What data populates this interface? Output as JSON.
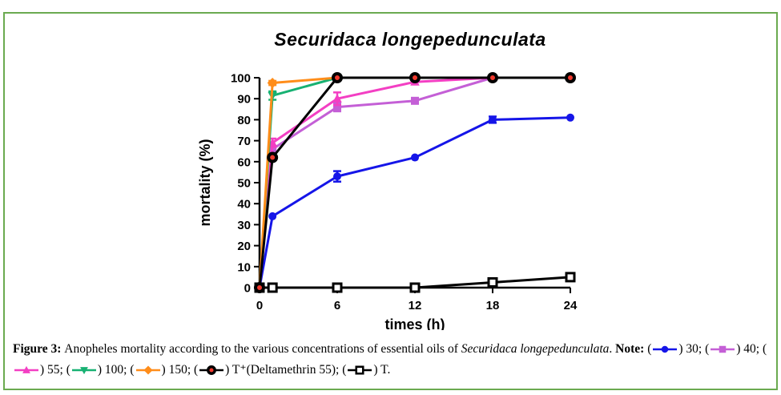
{
  "figure": {
    "border_color": "#6baa50"
  },
  "chart_data": {
    "type": "line",
    "title": "Securidaca longepedunculata",
    "xlabel": "times (h)",
    "ylabel": "mortality (%)",
    "x": [
      0,
      1,
      6,
      12,
      18,
      24
    ],
    "xticks": [
      0,
      6,
      12,
      18,
      24
    ],
    "xlim": [
      0,
      24
    ],
    "ylim": [
      0,
      100
    ],
    "ytick_step": 10,
    "grid": false,
    "legend_position": "caption",
    "series": [
      {
        "name": "30",
        "color": "#1515e8",
        "marker": "circle",
        "values": [
          0,
          34,
          53,
          62,
          80,
          81
        ],
        "errors": [
          0,
          0,
          2.5,
          0,
          1.5,
          0
        ]
      },
      {
        "name": "40",
        "color": "#c45fd6",
        "marker": "square",
        "values": [
          0,
          66,
          86,
          89,
          100,
          100
        ],
        "errors": [
          0,
          0,
          2,
          0,
          0,
          0
        ]
      },
      {
        "name": "55",
        "color": "#f33fc3",
        "marker": "triangle-up",
        "values": [
          0,
          69,
          90,
          98,
          100,
          100
        ],
        "errors": [
          0,
          2,
          3,
          0,
          0,
          0
        ]
      },
      {
        "name": "100",
        "color": "#17b172",
        "marker": "triangle-down",
        "values": [
          0,
          91.5,
          100,
          100,
          100,
          100
        ],
        "errors": [
          0,
          2,
          0,
          0,
          0,
          0
        ]
      },
      {
        "name": "150",
        "color": "#ff8d1a",
        "marker": "diamond",
        "values": [
          0,
          97.5,
          100,
          100,
          100,
          100
        ],
        "errors": [
          0,
          1,
          0,
          0,
          0,
          0
        ]
      },
      {
        "name": "T",
        "color": "#000000",
        "marker": "open-square",
        "values": [
          0,
          0,
          0,
          0,
          2.5,
          5
        ],
        "errors": [
          0,
          0,
          0,
          0,
          0,
          1
        ]
      },
      {
        "name": "T+",
        "color": "#000000",
        "marker": "ring-red",
        "marker_fill": "#f23a2e",
        "values": [
          0,
          62,
          100,
          100,
          100,
          100
        ],
        "errors": [
          0,
          0,
          0,
          0,
          0,
          0
        ]
      }
    ]
  },
  "caption": {
    "segments": [
      {
        "text": "Figure 3: ",
        "bold": true
      },
      {
        "text": "Anopheles mortality according to the various concentrations of essential oils of "
      },
      {
        "text": "Securidaca longepedunculata",
        "italic": true
      },
      {
        "text": ". "
      },
      {
        "text": "Note:",
        "bold": true
      },
      {
        "text": " ("
      },
      {
        "marker": "circle",
        "color": "#1515e8",
        "name": "30"
      },
      {
        "text": ") 30; ("
      },
      {
        "marker": "square",
        "color": "#c45fd6",
        "name": "40"
      },
      {
        "text": ") 40; ("
      },
      {
        "marker": "triangle-up",
        "color": "#f33fc3",
        "name": "55"
      },
      {
        "text": ") 55; ("
      },
      {
        "marker": "triangle-down",
        "color": "#17b172",
        "name": "100"
      },
      {
        "text": ") 100; ("
      },
      {
        "marker": "diamond",
        "color": "#ff8d1a",
        "name": "150"
      },
      {
        "text": ") 150; ("
      },
      {
        "marker": "ring-red",
        "color": "#000000",
        "fill": "#f23a2e",
        "name": "T-plus"
      },
      {
        "text": ") T⁺(Deltamethrin 55); ("
      },
      {
        "marker": "open-square",
        "color": "#000000",
        "name": "T"
      },
      {
        "text": ") T."
      }
    ]
  }
}
